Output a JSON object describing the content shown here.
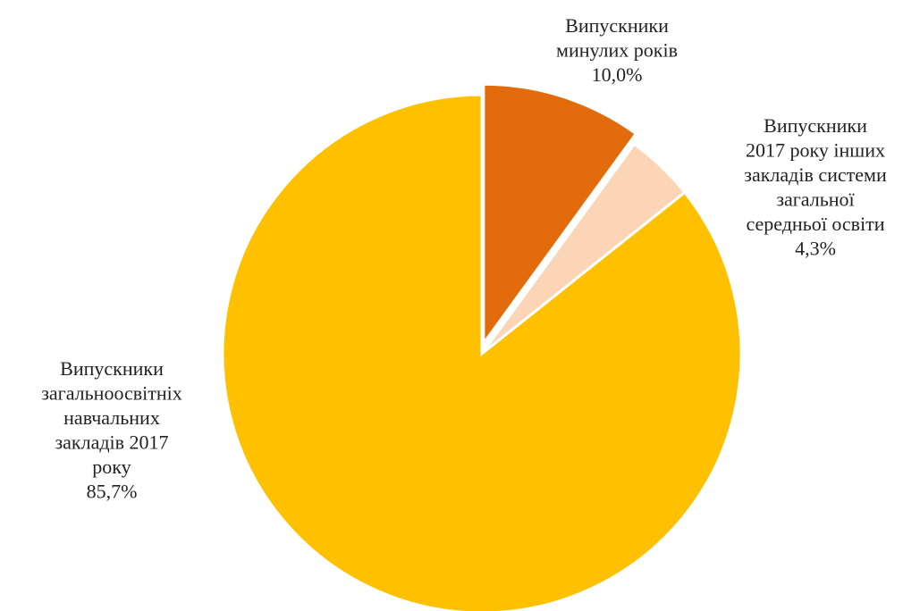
{
  "chart_data": {
    "type": "pie",
    "title": "",
    "start_angle_deg": 0,
    "direction": "clockwise",
    "slices": [
      {
        "name": "Випускники минулих років",
        "value": 10.0,
        "value_label": "10,0%",
        "color": "#E26C0C",
        "label_lines": [
          "Випускники",
          "минулих років",
          "10,0%"
        ]
      },
      {
        "name": "Випускники 2017 року інших закладів системи загальної середньої освіти",
        "value": 4.3,
        "value_label": "4,3%",
        "color": "#FBD5B5",
        "label_lines": [
          "Випускники",
          "2017 року інших",
          "закладів системи",
          "загальної",
          "середньої освіти",
          "4,3%"
        ]
      },
      {
        "name": "Випускники загальноосвітніх навчальних закладів 2017 року",
        "value": 85.7,
        "value_label": "85,7%",
        "color": "#FFC000",
        "label_lines": [
          "Випускники",
          "загальноосвітніх",
          "навчальних",
          "закладів 2017",
          "року",
          "85,7%"
        ]
      }
    ]
  }
}
